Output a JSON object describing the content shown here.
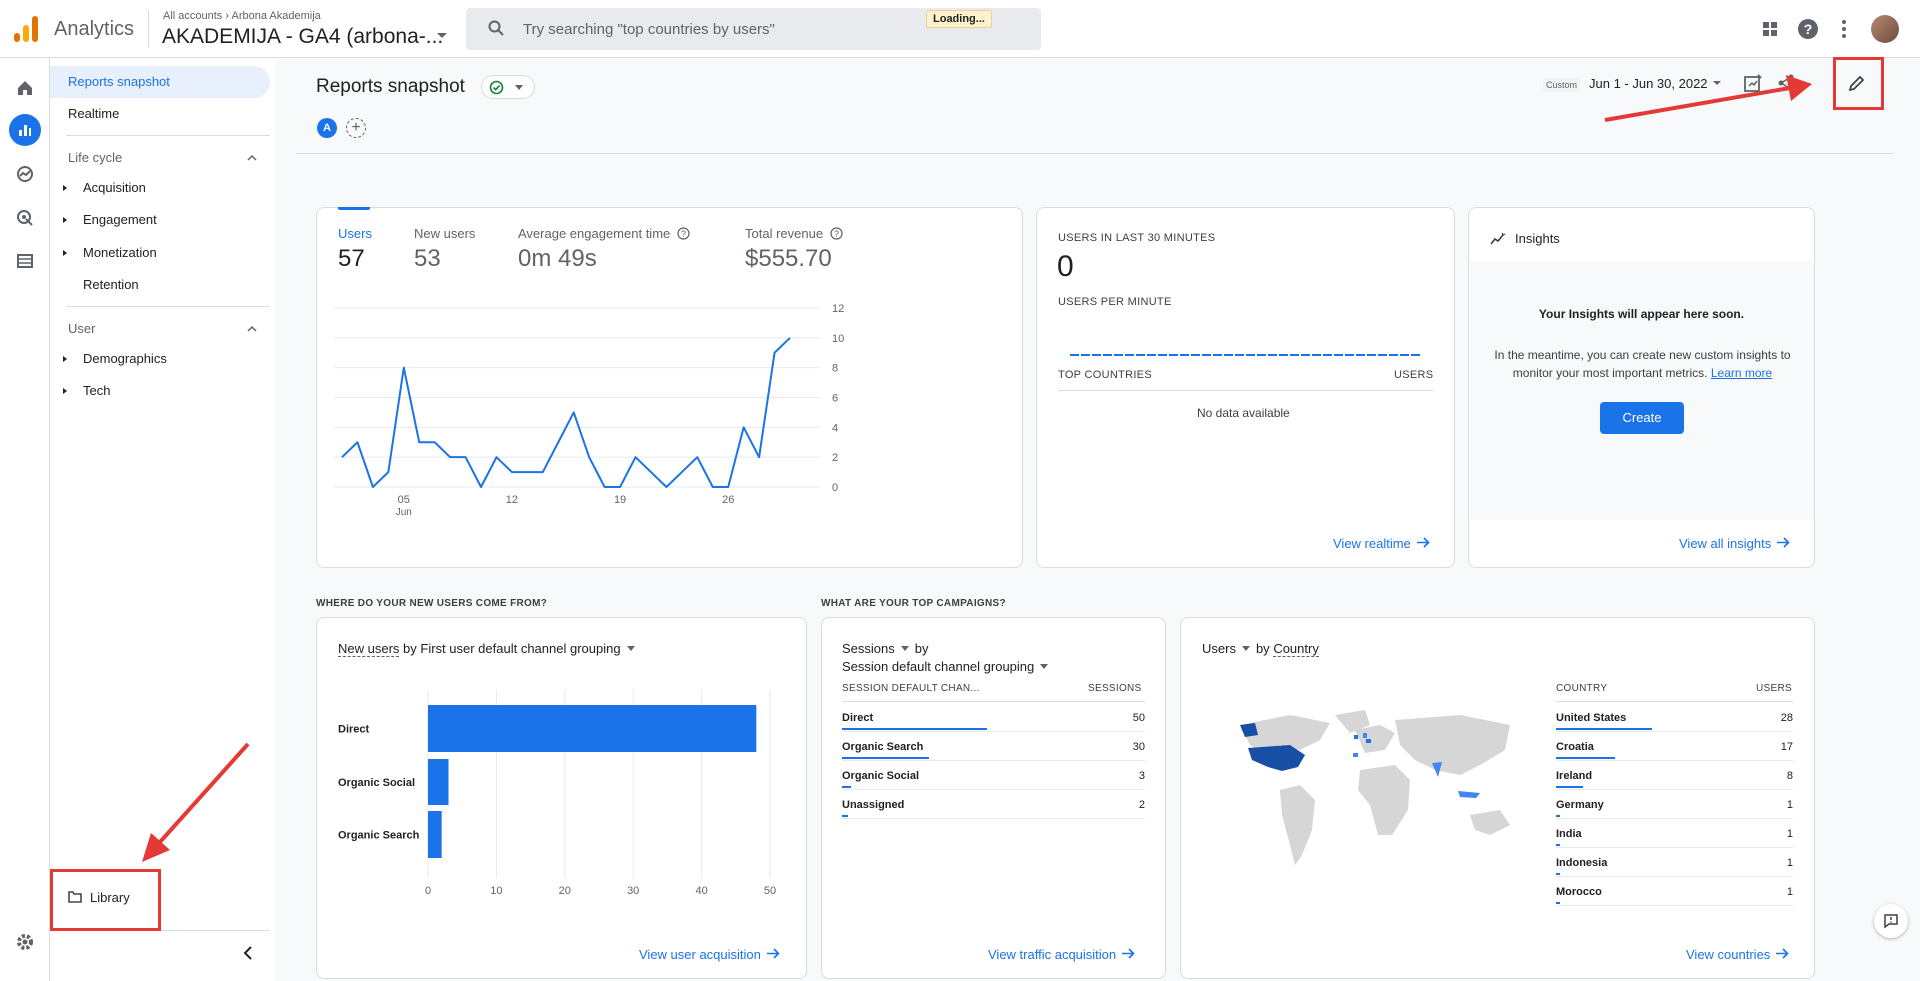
{
  "app": {
    "title": "Analytics"
  },
  "account": {
    "crumb_all": "All accounts",
    "crumb_sep": "›",
    "crumb_account": "Arbona Akademija",
    "property": "AKADEMIJA - GA4 (arbona-..."
  },
  "search": {
    "placeholder": "Try searching \"top countries by users\"",
    "loading": "Loading..."
  },
  "nav": {
    "reports_snapshot": "Reports snapshot",
    "realtime": "Realtime",
    "lifecycle_title": "Life cycle",
    "lifecycle_items": [
      "Acquisition",
      "Engagement",
      "Monetization",
      "Retention"
    ],
    "user_title": "User",
    "user_items": [
      "Demographics",
      "Tech"
    ],
    "library": "Library"
  },
  "header": {
    "title": "Reports snapshot",
    "comparison_letter": "A",
    "date_badge": "Custom",
    "date_range": "Jun 1 - Jun 30, 2022"
  },
  "metrics": [
    {
      "label": "Users",
      "value": "57"
    },
    {
      "label": "New users",
      "value": "53"
    },
    {
      "label": "Average engagement time",
      "value": "0m 49s"
    },
    {
      "label": "Total revenue",
      "value": "$555.70"
    }
  ],
  "chart_data": {
    "type": "line",
    "series": [
      {
        "values": [
          2,
          3,
          0,
          1,
          8,
          3,
          3,
          2,
          2,
          0,
          2,
          1,
          1,
          1,
          3,
          5,
          2,
          0,
          0,
          2,
          1,
          0,
          1,
          2,
          0,
          0,
          4,
          2,
          9,
          10
        ]
      }
    ],
    "x": [
      1,
      2,
      3,
      4,
      5,
      6,
      7,
      8,
      9,
      10,
      11,
      12,
      13,
      14,
      15,
      16,
      17,
      18,
      19,
      20,
      21,
      22,
      23,
      24,
      25,
      26,
      27,
      28,
      29,
      30
    ],
    "x_tick_labels": [
      "05",
      "12",
      "19",
      "26"
    ],
    "x_tick_sub": "Jun",
    "y_tick_labels": [
      "0",
      "2",
      "4",
      "6",
      "8",
      "10",
      "12"
    ],
    "ylim": [
      0,
      12
    ]
  },
  "realtime": {
    "title": "USERS IN LAST 30 MINUTES",
    "value": "0",
    "per_minute": "USERS PER MINUTE",
    "col_country": "TOP COUNTRIES",
    "col_users": "USERS",
    "empty": "No data available",
    "link": "View realtime"
  },
  "insights": {
    "title": "Insights",
    "headline": "Your Insights will appear here soon.",
    "body": "In the meantime, you can create new custom insights to monitor your most important metrics.",
    "learn_more": "Learn more",
    "create": "Create",
    "link": "View all insights"
  },
  "acquisition": {
    "section": "WHERE DO YOUR NEW USERS COME FROM?",
    "metric": "New users",
    "by": "by First user default channel grouping",
    "bars": [
      {
        "label": "Direct",
        "value": 48
      },
      {
        "label": "Organic Social",
        "value": 3
      },
      {
        "label": "Organic Search",
        "value": 2
      }
    ],
    "x_ticks": [
      "0",
      "10",
      "20",
      "30",
      "40",
      "50"
    ],
    "link": "View user acquisition"
  },
  "campaigns": {
    "section": "WHAT ARE YOUR TOP CAMPAIGNS?",
    "metric": "Sessions",
    "by": "by",
    "dimension": "Session default channel grouping",
    "col_name": "SESSION DEFAULT CHAN...",
    "col_val": "SESSIONS",
    "rows": [
      {
        "name": "Direct",
        "value": "50",
        "frac": 0.5
      },
      {
        "name": "Organic Search",
        "value": "30",
        "frac": 0.3
      },
      {
        "name": "Organic Social",
        "value": "3",
        "frac": 0.03
      },
      {
        "name": "Unassigned",
        "value": "2",
        "frac": 0.02
      }
    ],
    "link": "View traffic acquisition"
  },
  "countries": {
    "metric": "Users",
    "by": "by",
    "dimension": "Country",
    "col_name": "COUNTRY",
    "col_val": "USERS",
    "rows": [
      {
        "name": "United States",
        "value": "28",
        "frac": 0.49
      },
      {
        "name": "Croatia",
        "value": "17",
        "frac": 0.3
      },
      {
        "name": "Ireland",
        "value": "8",
        "frac": 0.14
      },
      {
        "name": "Germany",
        "value": "1",
        "frac": 0.02
      },
      {
        "name": "India",
        "value": "1",
        "frac": 0.02
      },
      {
        "name": "Indonesia",
        "value": "1",
        "frac": 0.02
      },
      {
        "name": "Morocco",
        "value": "1",
        "frac": 0.02
      }
    ],
    "link": "View countries"
  },
  "colors": {
    "accent": "#1a73e8",
    "annotation": "#e53935",
    "map_land": "#d6d6d6",
    "map_highlight": "#174ea6"
  }
}
